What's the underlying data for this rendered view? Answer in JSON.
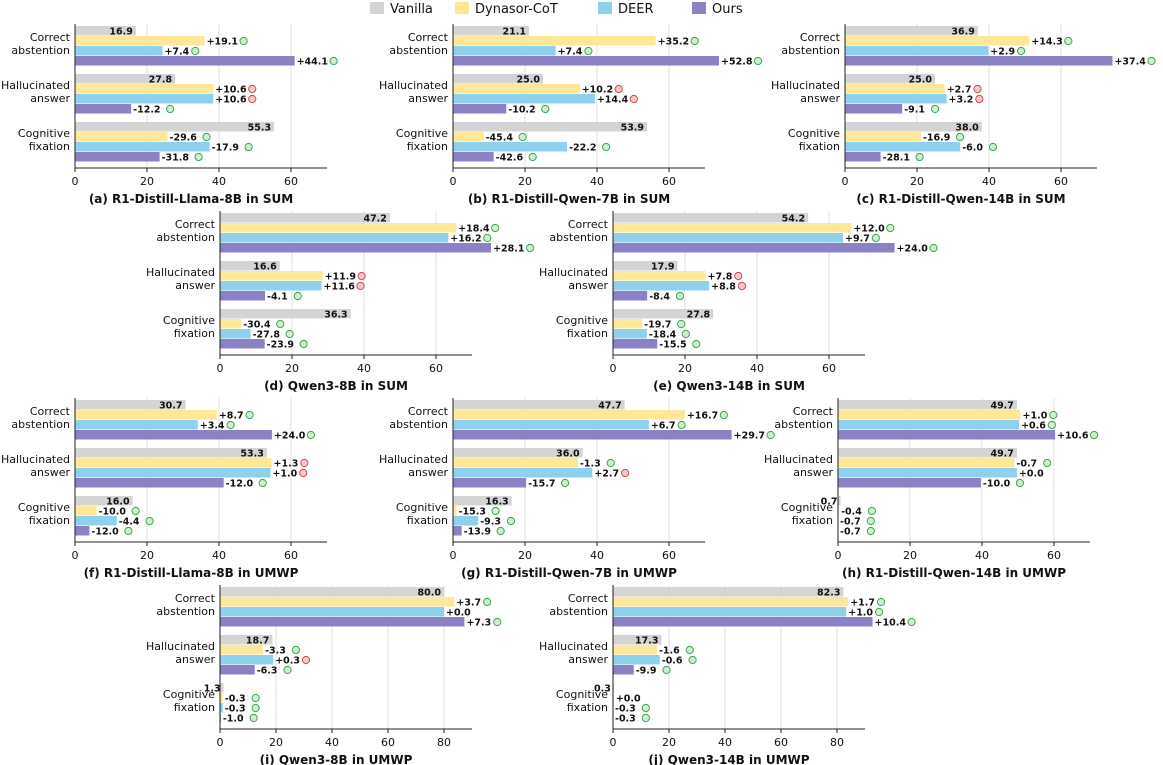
{
  "legend": {
    "items": [
      {
        "name": "Vanilla",
        "color": "#d4d4d4"
      },
      {
        "name": "Dynasor-CoT",
        "color": "#fde89a"
      },
      {
        "name": "DEER",
        "color": "#8fd0ec"
      },
      {
        "name": "Ours",
        "color": "#8a82c4"
      }
    ]
  },
  "chart_data": [
    {
      "type": "bar",
      "orientation": "horizontal",
      "title": "(a) R1-Distill-Llama-8B in SUM",
      "categories": [
        "Correct abstention",
        "Hallucinated answer",
        "Cognitive fixation"
      ],
      "xlim": [
        0,
        70
      ],
      "xticks": [
        0,
        20,
        40,
        60
      ],
      "series": [
        {
          "name": "Vanilla",
          "values": [
            16.9,
            27.8,
            55.3
          ],
          "labels": [
            "16.9",
            "27.8",
            "55.3"
          ]
        },
        {
          "name": "Dynasor-CoT",
          "values": [
            36.0,
            38.4,
            25.7
          ],
          "labels": [
            "+19.1",
            "+10.6",
            "-29.6"
          ],
          "marks": [
            "good",
            "bad",
            "good"
          ]
        },
        {
          "name": "DEER",
          "values": [
            24.3,
            38.4,
            37.4
          ],
          "labels": [
            "+7.4",
            "+10.6",
            "-17.9"
          ],
          "marks": [
            "good",
            "bad",
            "good"
          ]
        },
        {
          "name": "Ours",
          "values": [
            61.0,
            15.6,
            23.5
          ],
          "labels": [
            "+44.1",
            "-12.2",
            "-31.8"
          ],
          "marks": [
            "good",
            "good",
            "good"
          ]
        }
      ]
    },
    {
      "type": "bar",
      "orientation": "horizontal",
      "title": "(b) R1-Distill-Qwen-7B in SUM",
      "categories": [
        "Correct abstention",
        "Hallucinated answer",
        "Cognitive fixation"
      ],
      "xlim": [
        0,
        70
      ],
      "xticks": [
        0,
        20,
        40,
        60
      ],
      "series": [
        {
          "name": "Vanilla",
          "values": [
            21.1,
            25.0,
            53.9
          ],
          "labels": [
            "21.1",
            "25.0",
            "53.9"
          ]
        },
        {
          "name": "Dynasor-CoT",
          "values": [
            56.3,
            35.2,
            8.5
          ],
          "labels": [
            "+35.2",
            "+10.2",
            "-45.4"
          ],
          "marks": [
            "good",
            "bad",
            "good"
          ]
        },
        {
          "name": "DEER",
          "values": [
            28.5,
            39.4,
            31.7
          ],
          "labels": [
            "+7.4",
            "+14.4",
            "-22.2"
          ],
          "marks": [
            "good",
            "bad",
            "good"
          ]
        },
        {
          "name": "Ours",
          "values": [
            73.9,
            14.8,
            11.3
          ],
          "labels": [
            "+52.8",
            "-10.2",
            "-42.6"
          ],
          "marks": [
            "good",
            "good",
            "good"
          ]
        }
      ]
    },
    {
      "type": "bar",
      "orientation": "horizontal",
      "title": "(c) R1-Distill-Qwen-14B in SUM",
      "categories": [
        "Correct abstention",
        "Hallucinated answer",
        "Cognitive fixation"
      ],
      "xlim": [
        0,
        70
      ],
      "xticks": [
        0,
        20,
        40,
        60
      ],
      "series": [
        {
          "name": "Vanilla",
          "values": [
            36.9,
            25.0,
            38.0
          ],
          "labels": [
            "36.9",
            "25.0",
            "38.0"
          ]
        },
        {
          "name": "Dynasor-CoT",
          "values": [
            51.2,
            27.7,
            21.1
          ],
          "labels": [
            "+14.3",
            "+2.7",
            "-16.9"
          ],
          "marks": [
            "good",
            "bad",
            "good"
          ]
        },
        {
          "name": "DEER",
          "values": [
            39.8,
            28.2,
            32.0
          ],
          "labels": [
            "+2.9",
            "+3.2",
            "-6.0"
          ],
          "marks": [
            "good",
            "bad",
            "good"
          ]
        },
        {
          "name": "Ours",
          "values": [
            74.3,
            15.9,
            9.9
          ],
          "labels": [
            "+37.4",
            "-9.1",
            "-28.1"
          ],
          "marks": [
            "good",
            "good",
            "good"
          ]
        }
      ]
    },
    {
      "type": "bar",
      "orientation": "horizontal",
      "title": "(d) Qwen3-8B in SUM",
      "categories": [
        "Correct abstention",
        "Hallucinated answer",
        "Cognitive fixation"
      ],
      "xlim": [
        0,
        70
      ],
      "xticks": [
        0,
        20,
        40,
        60
      ],
      "series": [
        {
          "name": "Vanilla",
          "values": [
            47.2,
            16.6,
            36.3
          ],
          "labels": [
            "47.2",
            "16.6",
            "36.3"
          ]
        },
        {
          "name": "Dynasor-CoT",
          "values": [
            65.6,
            28.5,
            5.9
          ],
          "labels": [
            "+18.4",
            "+11.9",
            "-30.4"
          ],
          "marks": [
            "good",
            "bad",
            "good"
          ]
        },
        {
          "name": "DEER",
          "values": [
            63.4,
            28.2,
            8.5
          ],
          "labels": [
            "+16.2",
            "+11.6",
            "-27.8"
          ],
          "marks": [
            "good",
            "bad",
            "good"
          ]
        },
        {
          "name": "Ours",
          "values": [
            75.3,
            12.5,
            12.4
          ],
          "labels": [
            "+28.1",
            "-4.1",
            "-23.9"
          ],
          "marks": [
            "good",
            "good",
            "good"
          ]
        }
      ]
    },
    {
      "type": "bar",
      "orientation": "horizontal",
      "title": "(e) Qwen3-14B in SUM",
      "categories": [
        "Correct abstention",
        "Hallucinated answer",
        "Cognitive fixation"
      ],
      "xlim": [
        0,
        70
      ],
      "xticks": [
        0,
        20,
        40,
        60
      ],
      "series": [
        {
          "name": "Vanilla",
          "values": [
            54.2,
            17.9,
            27.8
          ],
          "labels": [
            "54.2",
            "17.9",
            "27.8"
          ]
        },
        {
          "name": "Dynasor-CoT",
          "values": [
            66.2,
            25.7,
            8.1
          ],
          "labels": [
            "+12.0",
            "+7.8",
            "-19.7"
          ],
          "marks": [
            "good",
            "bad",
            "good"
          ]
        },
        {
          "name": "DEER",
          "values": [
            63.9,
            26.7,
            9.4
          ],
          "labels": [
            "+9.7",
            "+8.8",
            "-18.4"
          ],
          "marks": [
            "good",
            "bad",
            "good"
          ]
        },
        {
          "name": "Ours",
          "values": [
            78.2,
            9.5,
            12.3
          ],
          "labels": [
            "+24.0",
            "-8.4",
            "-15.5"
          ],
          "marks": [
            "good",
            "good",
            "good"
          ]
        }
      ]
    },
    {
      "type": "bar",
      "orientation": "horizontal",
      "title": "(f) R1-Distill-Llama-8B in UMWP",
      "categories": [
        "Correct abstention",
        "Hallucinated answer",
        "Cognitive fixation"
      ],
      "xlim": [
        0,
        70
      ],
      "xticks": [
        0,
        20,
        40,
        60
      ],
      "series": [
        {
          "name": "Vanilla",
          "values": [
            30.7,
            53.3,
            16.0
          ],
          "labels": [
            "30.7",
            "53.3",
            "16.0"
          ]
        },
        {
          "name": "Dynasor-CoT",
          "values": [
            39.4,
            54.6,
            6.0
          ],
          "labels": [
            "+8.7",
            "+1.3",
            "-10.0"
          ],
          "marks": [
            "good",
            "bad",
            "good"
          ]
        },
        {
          "name": "DEER",
          "values": [
            34.1,
            54.3,
            11.6
          ],
          "labels": [
            "+3.4",
            "+1.0",
            "-4.4"
          ],
          "marks": [
            "good",
            "bad",
            "good"
          ]
        },
        {
          "name": "Ours",
          "values": [
            54.7,
            41.3,
            4.0
          ],
          "labels": [
            "+24.0",
            "-12.0",
            "-12.0"
          ],
          "marks": [
            "good",
            "good",
            "good"
          ]
        }
      ]
    },
    {
      "type": "bar",
      "orientation": "horizontal",
      "title": "(g) R1-Distill-Qwen-7B in UMWP",
      "categories": [
        "Correct abstention",
        "Hallucinated answer",
        "Cognitive fixation"
      ],
      "xlim": [
        0,
        70
      ],
      "xticks": [
        0,
        20,
        40,
        60
      ],
      "series": [
        {
          "name": "Vanilla",
          "values": [
            47.7,
            36.0,
            16.3
          ],
          "labels": [
            "47.7",
            "36.0",
            "16.3"
          ]
        },
        {
          "name": "Dynasor-CoT",
          "values": [
            64.4,
            34.7,
            1.0
          ],
          "labels": [
            "+16.7",
            "-1.3",
            "-15.3"
          ],
          "marks": [
            "good",
            "good",
            "good"
          ]
        },
        {
          "name": "DEER",
          "values": [
            54.4,
            38.7,
            7.0
          ],
          "labels": [
            "+6.7",
            "+2.7",
            "-9.3"
          ],
          "marks": [
            "good",
            "bad",
            "good"
          ]
        },
        {
          "name": "Ours",
          "values": [
            77.4,
            20.3,
            2.4
          ],
          "labels": [
            "+29.7",
            "-15.7",
            "-13.9"
          ],
          "marks": [
            "good",
            "good",
            "good"
          ]
        }
      ]
    },
    {
      "type": "bar",
      "orientation": "horizontal",
      "title": "(h) R1-Distill-Qwen-14B in UMWP",
      "categories": [
        "Correct abstention",
        "Hallucinated answer",
        "Cognitive fixation"
      ],
      "xlim": [
        0,
        70
      ],
      "xticks": [
        0,
        20,
        40,
        60
      ],
      "series": [
        {
          "name": "Vanilla",
          "values": [
            49.7,
            49.7,
            0.7
          ],
          "labels": [
            "49.7",
            "49.7",
            "0.7"
          ]
        },
        {
          "name": "Dynasor-CoT",
          "values": [
            50.7,
            49.0,
            0.3
          ],
          "labels": [
            "+1.0",
            "-0.7",
            "-0.4"
          ],
          "marks": [
            "good",
            "good",
            "good"
          ]
        },
        {
          "name": "DEER",
          "values": [
            50.3,
            49.7,
            0.0
          ],
          "labels": [
            "+0.6",
            "+0.0",
            "-0.7"
          ],
          "marks": [
            "good",
            "none",
            "good"
          ]
        },
        {
          "name": "Ours",
          "values": [
            60.3,
            39.7,
            0.0
          ],
          "labels": [
            "+10.6",
            "-10.0",
            "-0.7"
          ],
          "marks": [
            "good",
            "good",
            "good"
          ]
        }
      ]
    },
    {
      "type": "bar",
      "orientation": "horizontal",
      "title": "(i) Qwen3-8B in UMWP",
      "categories": [
        "Correct abstention",
        "Hallucinated answer",
        "Cognitive fixation"
      ],
      "xlim": [
        0,
        90
      ],
      "xticks": [
        0,
        20,
        40,
        60,
        80
      ],
      "series": [
        {
          "name": "Vanilla",
          "values": [
            80.0,
            18.7,
            1.3
          ],
          "labels": [
            "80.0",
            "18.7",
            "1.3"
          ]
        },
        {
          "name": "Dynasor-CoT",
          "values": [
            83.7,
            15.4,
            1.0
          ],
          "labels": [
            "+3.7",
            "-3.3",
            "-0.3"
          ],
          "marks": [
            "good",
            "good",
            "good"
          ]
        },
        {
          "name": "DEER",
          "values": [
            80.0,
            19.0,
            1.0
          ],
          "labels": [
            "+0.0",
            "+0.3",
            "-0.3"
          ],
          "marks": [
            "none",
            "bad",
            "good"
          ]
        },
        {
          "name": "Ours",
          "values": [
            87.3,
            12.4,
            0.3
          ],
          "labels": [
            "+7.3",
            "-6.3",
            "-1.0"
          ],
          "marks": [
            "good",
            "good",
            "good"
          ]
        }
      ]
    },
    {
      "type": "bar",
      "orientation": "horizontal",
      "title": "(j) Qwen3-14B in UMWP",
      "categories": [
        "Correct abstention",
        "Hallucinated answer",
        "Cognitive fixation"
      ],
      "xlim": [
        0,
        90
      ],
      "xticks": [
        0,
        20,
        40,
        60,
        80
      ],
      "series": [
        {
          "name": "Vanilla",
          "values": [
            82.3,
            17.3,
            0.3
          ],
          "labels": [
            "82.3",
            "17.3",
            "0.3"
          ]
        },
        {
          "name": "Dynasor-CoT",
          "values": [
            84.0,
            15.7,
            0.3
          ],
          "labels": [
            "+1.7",
            "-1.6",
            "+0.0"
          ],
          "marks": [
            "good",
            "good",
            "none"
          ]
        },
        {
          "name": "DEER",
          "values": [
            83.3,
            16.7,
            0.0
          ],
          "labels": [
            "+1.0",
            "-0.6",
            "-0.3"
          ],
          "marks": [
            "good",
            "good",
            "good"
          ]
        },
        {
          "name": "Ours",
          "values": [
            92.7,
            7.4,
            0.0
          ],
          "labels": [
            "+10.4",
            "-9.9",
            "-0.3"
          ],
          "marks": [
            "good",
            "good",
            "good"
          ]
        }
      ]
    }
  ]
}
